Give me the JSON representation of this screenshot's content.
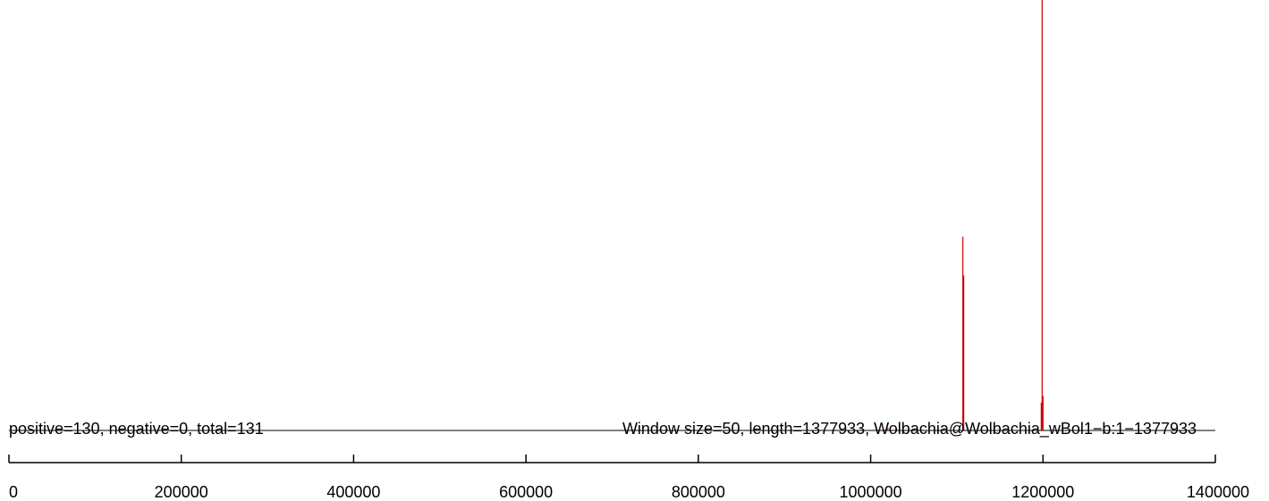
{
  "chart_data": {
    "type": "bar",
    "annotations": {
      "counts": "positive=130, negative=0, total=131",
      "info": "Window size=50, length=1377933, Wolbachia@Wolbachia_wBol1−b:1−1377933"
    },
    "x_ticks": [
      "0",
      "200000",
      "400000",
      "600000",
      "800000",
      "1000000",
      "1200000",
      "1400000"
    ],
    "xlim": [
      0,
      1400000
    ],
    "ylim": [
      0,
      100
    ],
    "baseline_color": "#000000",
    "bar_color": "#cc0000",
    "grid": false,
    "series": [
      {
        "x": [
          1020000,
          1107000,
          1108000,
          1198000,
          1199000,
          1200000
        ],
        "values": [
          0.6,
          45,
          36,
          6.5,
          100,
          8
        ]
      }
    ]
  }
}
